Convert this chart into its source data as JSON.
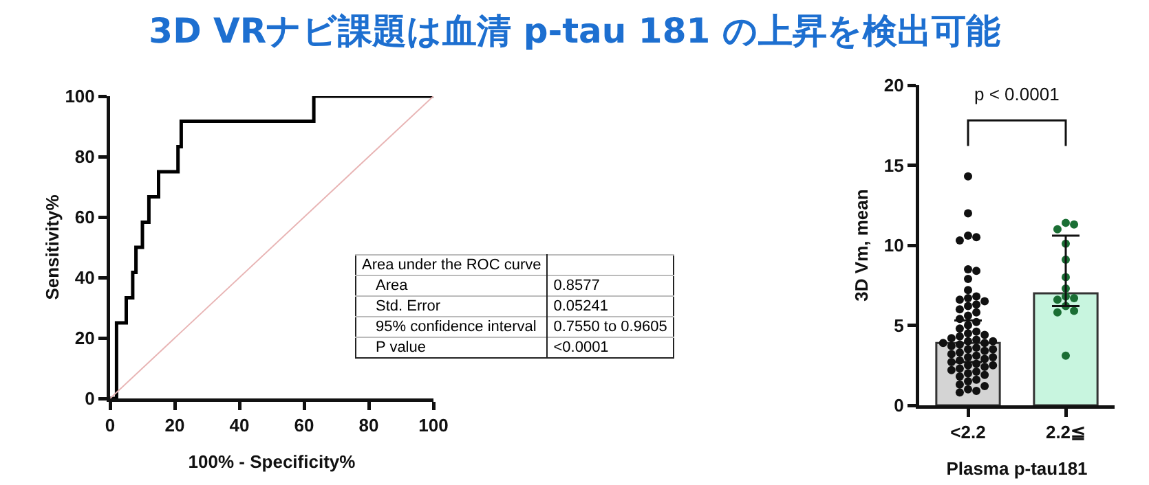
{
  "chart_data": [
    {
      "type": "line",
      "title": "3D VRナビ課題は血清 p-tau 181 の上昇を検出可能",
      "xlabel": "100% - Specificity%",
      "ylabel": "Sensitivity%",
      "xlim": [
        0,
        100
      ],
      "ylim": [
        0,
        100
      ],
      "xticks": [
        0,
        20,
        40,
        60,
        80,
        100
      ],
      "yticks": [
        0,
        20,
        40,
        60,
        80,
        100
      ],
      "grid": false,
      "marker": "none",
      "line_style": "solid",
      "series": [
        {
          "color": "#000000",
          "x": [
            0,
            2,
            2,
            5,
            5,
            7,
            7,
            8,
            8,
            10,
            10,
            12,
            12,
            15,
            15,
            21,
            21,
            22,
            22,
            63,
            63,
            100
          ],
          "values": [
            0,
            0,
            25,
            25,
            33.3,
            33.3,
            41.7,
            41.7,
            50,
            50,
            58.3,
            58.3,
            66.7,
            66.7,
            75,
            75,
            83.3,
            83.3,
            91.7,
            91.7,
            100,
            100
          ]
        },
        {
          "color": "#e8b4b4",
          "x": [
            0,
            100
          ],
          "values": [
            0,
            100
          ]
        }
      ],
      "annotations": [
        "Area under the ROC curve",
        "Area",
        "0.8577",
        "Std. Error",
        "0.05241",
        "95% confidence interval",
        "0.7550 to 0.9605",
        "P value",
        "<0.0001"
      ]
    },
    {
      "type": "bar",
      "xlabel": "Plasma p-tau181",
      "ylabel": "3D Vm, mean",
      "categories": [
        "<2.2",
        "2.2≦"
      ],
      "ylim": [
        0,
        20
      ],
      "yticks": [
        0,
        5,
        10,
        15,
        20
      ],
      "grid": false,
      "series": [
        {
          "type": "bar",
          "colors": [
            "#d4d4d4",
            "#c8f5df"
          ],
          "values": [
            3.9,
            7.0
          ],
          "errors": [
            [
              2.7,
              5.3
            ],
            [
              6.2,
              10.6
            ]
          ]
        },
        {
          "type": "scatter",
          "marker": "circle",
          "color": "#111111",
          "x": [
            "<2.2",
            "<2.2",
            "<2.2",
            "<2.2",
            "<2.2",
            "<2.2",
            "<2.2",
            "<2.2",
            "<2.2",
            "<2.2",
            "<2.2",
            "<2.2",
            "<2.2",
            "<2.2",
            "<2.2",
            "<2.2",
            "<2.2",
            "<2.2",
            "<2.2",
            "<2.2",
            "<2.2",
            "<2.2",
            "<2.2",
            "<2.2",
            "<2.2",
            "<2.2",
            "<2.2",
            "<2.2",
            "<2.2",
            "<2.2",
            "<2.2",
            "<2.2",
            "<2.2",
            "<2.2",
            "<2.2",
            "<2.2",
            "<2.2",
            "<2.2",
            "<2.2",
            "<2.2",
            "<2.2",
            "<2.2",
            "<2.2",
            "<2.2",
            "<2.2",
            "<2.2",
            "<2.2",
            "<2.2",
            "<2.2",
            "<2.2",
            "<2.2",
            "<2.2",
            "<2.2",
            "<2.2",
            "<2.2",
            "<2.2",
            "<2.2",
            "<2.2",
            "<2.2",
            "<2.2",
            "<2.2",
            "<2.2",
            "<2.2"
          ],
          "values": [
            14.3,
            12.0,
            10.6,
            10.5,
            10.3,
            8.5,
            8.4,
            7.9,
            7.2,
            6.8,
            6.7,
            6.6,
            6.5,
            6.3,
            6.2,
            6.0,
            5.8,
            5.6,
            5.4,
            5.2,
            5.0,
            4.8,
            4.6,
            4.5,
            4.4,
            4.3,
            4.2,
            4.1,
            4.0,
            4.0,
            3.9,
            3.9,
            3.8,
            3.7,
            3.6,
            3.5,
            3.5,
            3.4,
            3.3,
            3.2,
            3.1,
            3.0,
            3.0,
            2.9,
            2.8,
            2.7,
            2.6,
            2.5,
            2.5,
            2.4,
            2.3,
            2.2,
            2.1,
            2.0,
            1.9,
            1.8,
            1.6,
            1.5,
            1.3,
            1.2,
            1.0,
            0.9,
            0.8
          ]
        },
        {
          "type": "scatter",
          "marker": "circle",
          "color": "#1a6e34",
          "x": [
            "2.2≦",
            "2.2≦",
            "2.2≦",
            "2.2≦",
            "2.2≦",
            "2.2≦",
            "2.2≦",
            "2.2≦",
            "2.2≦",
            "2.2≦",
            "2.2≦",
            "2.2≦",
            "2.2≦",
            "2.2≦"
          ],
          "values": [
            11.4,
            11.3,
            11.0,
            10.1,
            9.1,
            8.0,
            7.3,
            6.8,
            6.7,
            6.6,
            6.2,
            5.9,
            5.8,
            3.1
          ]
        }
      ],
      "annotations": [
        "p < 0.0001"
      ]
    }
  ]
}
